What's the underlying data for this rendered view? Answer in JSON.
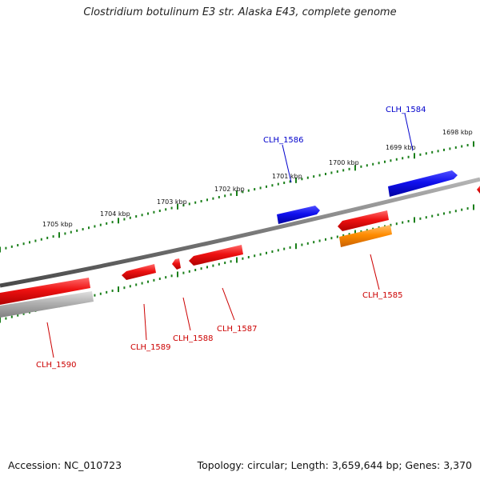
{
  "title": "Clostridium botulinum E3 str. Alaska E43, complete genome",
  "footer": {
    "accession": "Accession: NC_010723",
    "topology": "Topology: circular; Length: 3,659,644 bp; Genes: 3,370"
  },
  "colors": {
    "backbone": "#7a7a7a",
    "tick": "#1a7f1a",
    "gene_red": "#ee1111",
    "gene_blue": "#1010ee",
    "gene_orange": "#ff8c00",
    "gene_gray": "#b0b0b0",
    "label_red": "#cc0000",
    "label_blue": "#0000cc",
    "scale_text": "#111111"
  },
  "scale_labels": [
    "1698 kbp",
    "1699 kbp",
    "1700 kbp",
    "1701 kbp",
    "1702 kbp",
    "1703 kbp",
    "1704 kbp",
    "1705 kbp"
  ],
  "gene_labels": [
    "CLH_1584",
    "CLH_1585",
    "CLH_1586",
    "CLH_1587",
    "CLH_1588",
    "CLH_1589",
    "CLH_1590"
  ]
}
